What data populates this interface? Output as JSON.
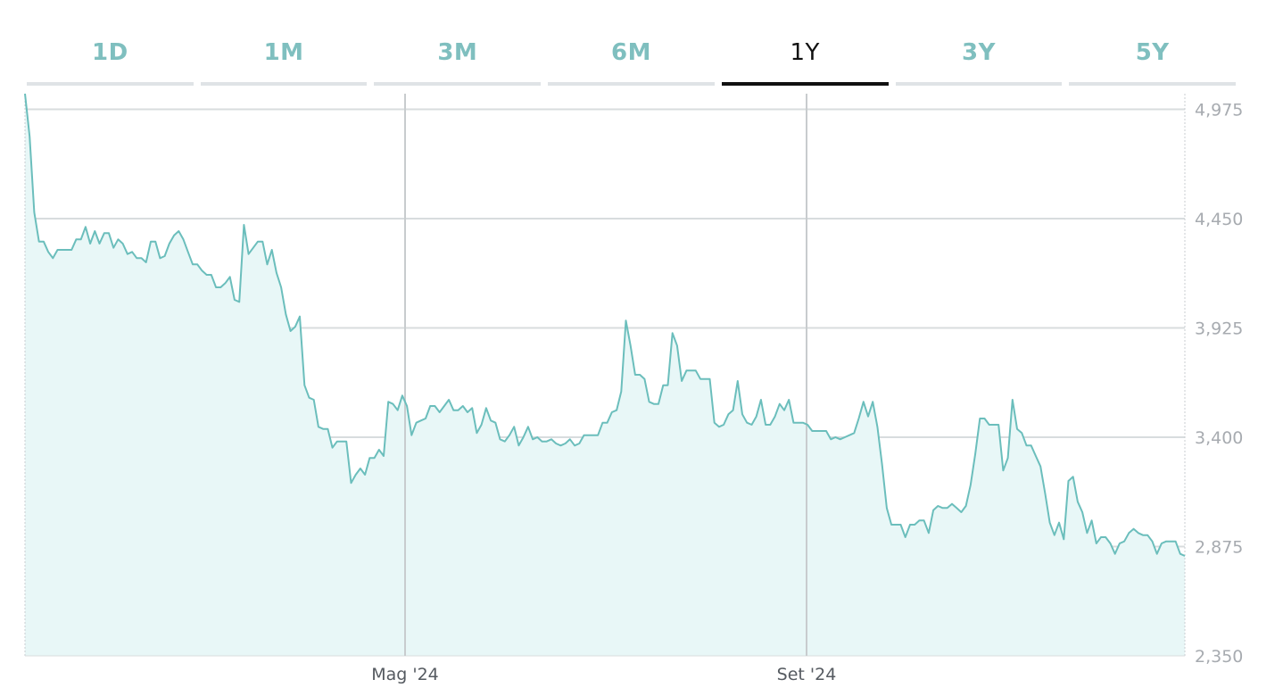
{
  "tabs": [
    {
      "label": "1D",
      "active": false
    },
    {
      "label": "1M",
      "active": false
    },
    {
      "label": "3M",
      "active": false
    },
    {
      "label": "6M",
      "active": false
    },
    {
      "label": "1Y",
      "active": true
    },
    {
      "label": "3Y",
      "active": false
    },
    {
      "label": "5Y",
      "active": false
    }
  ],
  "colors": {
    "line": "#6bbebc",
    "fill": "#e8f7f7",
    "grid": "#d8dcde",
    "tab_inactive": "#7fbfbf",
    "tab_active": "#111111"
  },
  "chart_data": {
    "type": "area",
    "title": "",
    "xlabel": "",
    "ylabel": "",
    "ylim": [
      2350,
      5050
    ],
    "y_ticks": [
      2350,
      2875,
      3400,
      3925,
      4450,
      4975
    ],
    "y_tick_labels": [
      "2,350",
      "2,875",
      "3,400",
      "3,925",
      "4,450",
      "4,975"
    ],
    "y_axis_position": "right",
    "x_ticks": [
      "Mag '24",
      "Set '24"
    ],
    "grid": true,
    "series": [
      {
        "values": [
          5050,
          4845,
          4480,
          4340,
          4340,
          4290,
          4260,
          4300,
          4300,
          4300,
          4300,
          4350,
          4350,
          4410,
          4330,
          4390,
          4330,
          4380,
          4380,
          4310,
          4350,
          4330,
          4280,
          4290,
          4260,
          4260,
          4240,
          4340,
          4340,
          4260,
          4270,
          4330,
          4370,
          4390,
          4350,
          4290,
          4230,
          4230,
          4200,
          4180,
          4180,
          4120,
          4120,
          4140,
          4170,
          4060,
          4050,
          4420,
          4280,
          4310,
          4340,
          4340,
          4230,
          4300,
          4190,
          4120,
          3990,
          3910,
          3930,
          3980,
          3650,
          3590,
          3580,
          3450,
          3440,
          3440,
          3350,
          3380,
          3380,
          3380,
          3180,
          3220,
          3250,
          3220,
          3300,
          3300,
          3340,
          3310,
          3570,
          3560,
          3530,
          3600,
          3550,
          3410,
          3470,
          3480,
          3490,
          3550,
          3550,
          3520,
          3550,
          3580,
          3530,
          3530,
          3550,
          3520,
          3540,
          3420,
          3460,
          3540,
          3480,
          3470,
          3390,
          3380,
          3410,
          3450,
          3360,
          3400,
          3450,
          3390,
          3400,
          3380,
          3380,
          3390,
          3370,
          3360,
          3370,
          3390,
          3360,
          3370,
          3410,
          3410,
          3410,
          3410,
          3470,
          3470,
          3520,
          3530,
          3620,
          3960,
          3840,
          3700,
          3700,
          3680,
          3570,
          3560,
          3560,
          3650,
          3650,
          3900,
          3840,
          3670,
          3720,
          3720,
          3720,
          3680,
          3680,
          3680,
          3470,
          3450,
          3460,
          3510,
          3530,
          3670,
          3510,
          3470,
          3460,
          3500,
          3580,
          3460,
          3460,
          3500,
          3560,
          3530,
          3580,
          3470,
          3470,
          3470,
          3460,
          3430,
          3430,
          3430,
          3430,
          3390,
          3400,
          3390,
          3400,
          3410,
          3420,
          3490,
          3570,
          3500,
          3570,
          3450,
          3270,
          3060,
          2980,
          2980,
          2980,
          2920,
          2980,
          2980,
          3000,
          3000,
          2940,
          3050,
          3070,
          3060,
          3060,
          3080,
          3060,
          3040,
          3070,
          3170,
          3320,
          3490,
          3490,
          3460,
          3460,
          3460,
          3240,
          3300,
          3580,
          3440,
          3420,
          3360,
          3360,
          3310,
          3260,
          3130,
          2990,
          2930,
          2990,
          2910,
          3190,
          3210,
          3090,
          3040,
          2940,
          3000,
          2890,
          2920,
          2920,
          2890,
          2840,
          2890,
          2900,
          2940,
          2960,
          2940,
          2930,
          2930,
          2900,
          2840,
          2890,
          2900,
          2900,
          2900,
          2840,
          2830
        ]
      }
    ]
  }
}
